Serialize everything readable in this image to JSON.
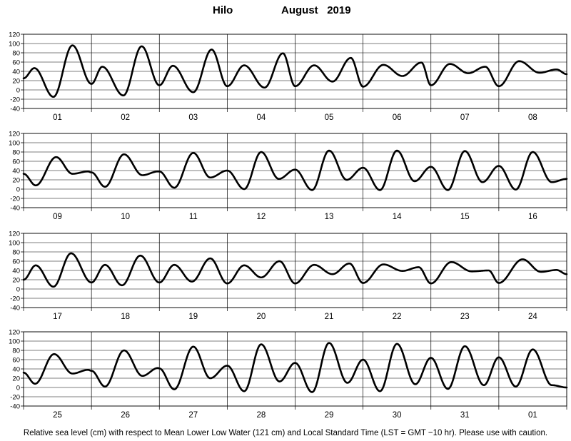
{
  "header": {
    "station": "Hilo",
    "month": "August",
    "year": "2019"
  },
  "footer": {
    "caption": "Relative sea level (cm) with respect to Mean Lower Low Water (121 cm) and Local Standard Time (LST = GMT −10 hr). Please use with caution."
  },
  "chart_data": [
    {
      "type": "line",
      "x_unit": "day",
      "day_labels": [
        "01",
        "02",
        "03",
        "04",
        "05",
        "06",
        "07",
        "08"
      ],
      "ylim": [
        -40,
        120
      ],
      "yticks": [
        -40,
        -20,
        0,
        20,
        40,
        60,
        80,
        100,
        120
      ],
      "grid": true,
      "series": [
        {
          "points": [
            [
              0,
              25
            ],
            [
              0.16,
              47
            ],
            [
              0.44,
              -15
            ],
            [
              0.72,
              96
            ],
            [
              1,
              13
            ],
            [
              1.16,
              50
            ],
            [
              1.47,
              -12
            ],
            [
              1.74,
              94
            ],
            [
              2,
              10
            ],
            [
              2.2,
              52
            ],
            [
              2.5,
              -5
            ],
            [
              2.77,
              87
            ],
            [
              3,
              8
            ],
            [
              3.25,
              53
            ],
            [
              3.55,
              5
            ],
            [
              3.82,
              79
            ],
            [
              4,
              8
            ],
            [
              4.28,
              53
            ],
            [
              4.55,
              18
            ],
            [
              4.82,
              69
            ],
            [
              5,
              7
            ],
            [
              5.3,
              54
            ],
            [
              5.58,
              30
            ],
            [
              5.86,
              59
            ],
            [
              6,
              10
            ],
            [
              6.28,
              56
            ],
            [
              6.55,
              36
            ],
            [
              6.8,
              50
            ],
            [
              7,
              8
            ],
            [
              7.3,
              62
            ],
            [
              7.6,
              37
            ],
            [
              7.85,
              44
            ],
            [
              8,
              34
            ]
          ]
        }
      ]
    },
    {
      "type": "line",
      "x_unit": "day",
      "day_labels": [
        "09",
        "10",
        "11",
        "12",
        "13",
        "14",
        "15",
        "16"
      ],
      "ylim": [
        -40,
        120
      ],
      "yticks": [
        -40,
        -20,
        0,
        20,
        40,
        60,
        80,
        100,
        120
      ],
      "grid": true,
      "series": [
        {
          "points": [
            [
              0,
              33
            ],
            [
              0.18,
              8
            ],
            [
              0.48,
              69
            ],
            [
              0.72,
              33
            ],
            [
              0.95,
              38
            ],
            [
              1,
              36
            ],
            [
              1.2,
              5
            ],
            [
              1.48,
              75
            ],
            [
              1.75,
              30
            ],
            [
              1.98,
              38
            ],
            [
              2,
              38
            ],
            [
              2.22,
              3
            ],
            [
              2.5,
              78
            ],
            [
              2.75,
              25
            ],
            [
              3,
              40
            ],
            [
              3.25,
              0
            ],
            [
              3.5,
              80
            ],
            [
              3.76,
              22
            ],
            [
              4,
              42
            ],
            [
              4.25,
              -2
            ],
            [
              4.5,
              83
            ],
            [
              4.76,
              20
            ],
            [
              5,
              46
            ],
            [
              5.25,
              -2
            ],
            [
              5.5,
              83
            ],
            [
              5.76,
              17
            ],
            [
              6,
              48
            ],
            [
              6.25,
              -2
            ],
            [
              6.5,
              82
            ],
            [
              6.76,
              15
            ],
            [
              7,
              50
            ],
            [
              7.25,
              -1
            ],
            [
              7.5,
              80
            ],
            [
              7.78,
              15
            ],
            [
              8,
              22
            ]
          ]
        }
      ]
    },
    {
      "type": "line",
      "x_unit": "day",
      "day_labels": [
        "17",
        "18",
        "19",
        "20",
        "21",
        "22",
        "23",
        "24"
      ],
      "ylim": [
        -40,
        120
      ],
      "yticks": [
        -40,
        -20,
        0,
        20,
        40,
        60,
        80,
        100,
        120
      ],
      "grid": true,
      "series": [
        {
          "points": [
            [
              0,
              20
            ],
            [
              0.18,
              51
            ],
            [
              0.44,
              5
            ],
            [
              0.7,
              77
            ],
            [
              1,
              14
            ],
            [
              1.2,
              52
            ],
            [
              1.45,
              8
            ],
            [
              1.72,
              72
            ],
            [
              2,
              14
            ],
            [
              2.22,
              52
            ],
            [
              2.48,
              16
            ],
            [
              2.75,
              66
            ],
            [
              3,
              12
            ],
            [
              3.25,
              51
            ],
            [
              3.5,
              25
            ],
            [
              3.77,
              60
            ],
            [
              4,
              12
            ],
            [
              4.28,
              52
            ],
            [
              4.55,
              32
            ],
            [
              4.8,
              55
            ],
            [
              5,
              13
            ],
            [
              5.3,
              53
            ],
            [
              5.58,
              39
            ],
            [
              5.82,
              47
            ],
            [
              6,
              12
            ],
            [
              6.3,
              58
            ],
            [
              6.6,
              38
            ],
            [
              6.85,
              40
            ],
            [
              7,
              13
            ],
            [
              7.35,
              64
            ],
            [
              7.62,
              37
            ],
            [
              7.85,
              41
            ],
            [
              8,
              32
            ]
          ]
        }
      ]
    },
    {
      "type": "line",
      "x_unit": "day",
      "day_labels": [
        "25",
        "26",
        "27",
        "28",
        "29",
        "30",
        "31",
        "01"
      ],
      "ylim": [
        -40,
        120
      ],
      "yticks": [
        -40,
        -20,
        0,
        20,
        40,
        60,
        80,
        100,
        120
      ],
      "grid": true,
      "series": [
        {
          "points": [
            [
              0,
              32
            ],
            [
              0.17,
              8
            ],
            [
              0.45,
              72
            ],
            [
              0.72,
              30
            ],
            [
              0.95,
              38
            ],
            [
              1,
              36
            ],
            [
              1.2,
              2
            ],
            [
              1.48,
              80
            ],
            [
              1.75,
              25
            ],
            [
              1.98,
              42
            ],
            [
              2,
              41
            ],
            [
              2.22,
              -4
            ],
            [
              2.5,
              88
            ],
            [
              2.75,
              20
            ],
            [
              3,
              47
            ],
            [
              3.25,
              -8
            ],
            [
              3.5,
              93
            ],
            [
              3.77,
              13
            ],
            [
              4,
              53
            ],
            [
              4.25,
              -10
            ],
            [
              4.5,
              96
            ],
            [
              4.77,
              10
            ],
            [
              5,
              60
            ],
            [
              5.25,
              -8
            ],
            [
              5.5,
              94
            ],
            [
              5.77,
              7
            ],
            [
              6,
              64
            ],
            [
              6.25,
              -3
            ],
            [
              6.5,
              89
            ],
            [
              6.78,
              5
            ],
            [
              7,
              65
            ],
            [
              7.25,
              2
            ],
            [
              7.5,
              82
            ],
            [
              7.78,
              5
            ],
            [
              8,
              0
            ]
          ]
        }
      ]
    }
  ]
}
